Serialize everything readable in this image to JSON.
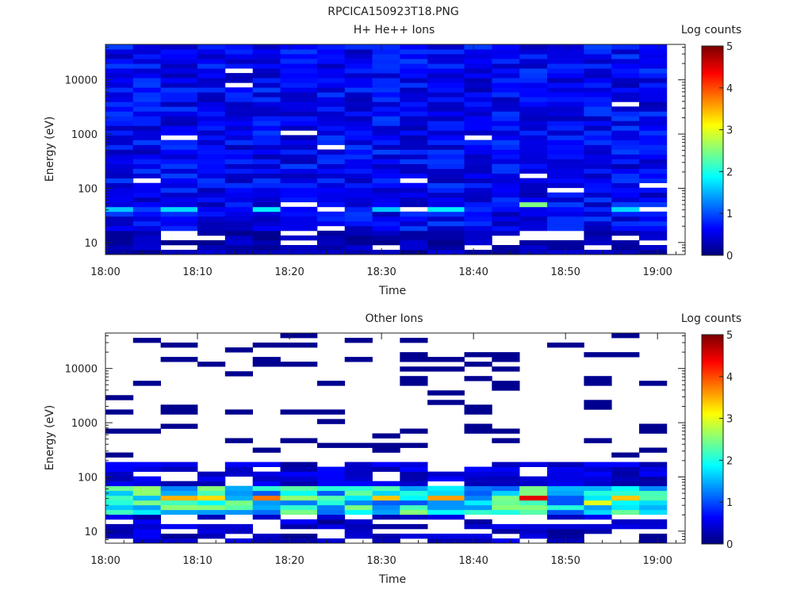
{
  "figure_title": "RPCICA150923T18.PNG",
  "chart_data": [
    {
      "type": "heatmap",
      "title": "H+ He++ Ions",
      "xlabel": "Time",
      "ylabel": "Energy (eV)",
      "x_ticks": [
        "18:00",
        "18:10",
        "18:20",
        "18:30",
        "18:40",
        "18:50",
        "19:00"
      ],
      "x_range": [
        "18:00",
        "19:03"
      ],
      "y_scale": "log",
      "y_ticks": [
        10,
        100,
        1000,
        10000
      ],
      "y_range": [
        6,
        45000
      ],
      "colorbar": {
        "label": "Log counts",
        "range": [
          0,
          5
        ],
        "ticks": [
          0,
          1,
          2,
          3,
          4,
          5
        ],
        "colormap": "jet"
      },
      "time_bins": [
        "18:00",
        "18:03",
        "18:06",
        "18:10",
        "18:13",
        "18:16",
        "18:19",
        "18:23",
        "18:26",
        "18:29",
        "18:32",
        "18:35",
        "18:39",
        "18:42",
        "18:45",
        "18:48",
        "18:52",
        "18:55",
        "18:58"
      ],
      "notable_cells": [
        {
          "time": "18:00",
          "energy_eV": 40,
          "log_counts": 1.6
        },
        {
          "time": "18:06",
          "energy_eV": 38,
          "log_counts": 1.7
        },
        {
          "time": "18:16",
          "energy_eV": 45,
          "log_counts": 1.8
        },
        {
          "time": "18:29",
          "energy_eV": 40,
          "log_counts": 1.6
        },
        {
          "time": "18:35",
          "energy_eV": 45,
          "log_counts": 1.8
        },
        {
          "time": "18:45",
          "energy_eV": 55,
          "log_counts": 2.5
        },
        {
          "time": "18:55",
          "energy_eV": 45,
          "log_counts": 1.7
        }
      ],
      "background_level": "log counts mostly 0.2 - 1.0 across all energies"
    },
    {
      "type": "heatmap",
      "title": "Other Ions",
      "xlabel": "Time",
      "ylabel": "Energy (eV)",
      "x_ticks": [
        "18:00",
        "18:10",
        "18:20",
        "18:30",
        "18:40",
        "18:50",
        "19:00"
      ],
      "x_range": [
        "18:00",
        "19:03"
      ],
      "y_scale": "log",
      "y_ticks": [
        10,
        100,
        1000,
        10000
      ],
      "y_range": [
        6,
        45000
      ],
      "colorbar": {
        "label": "Log counts",
        "range": [
          0,
          5
        ],
        "ticks": [
          0,
          1,
          2,
          3,
          4,
          5
        ],
        "colormap": "jet"
      },
      "time_bins": [
        "18:00",
        "18:03",
        "18:06",
        "18:10",
        "18:13",
        "18:16",
        "18:19",
        "18:23",
        "18:26",
        "18:29",
        "18:32",
        "18:35",
        "18:39",
        "18:42",
        "18:45",
        "18:48",
        "18:52",
        "18:55",
        "18:58"
      ],
      "peak_band_eV": [
        25,
        55
      ],
      "notable_cells": [
        {
          "time": "18:06",
          "energy_eV": 38,
          "log_counts": 3.5
        },
        {
          "time": "18:10",
          "energy_eV": 38,
          "log_counts": 3.3
        },
        {
          "time": "18:16",
          "energy_eV": 45,
          "log_counts": 3.8
        },
        {
          "time": "18:29",
          "energy_eV": 38,
          "log_counts": 3.4
        },
        {
          "time": "18:35",
          "energy_eV": 38,
          "log_counts": 3.6
        },
        {
          "time": "18:45",
          "energy_eV": 45,
          "log_counts": 4.5
        },
        {
          "time": "18:52",
          "energy_eV": 35,
          "log_counts": 3.0
        },
        {
          "time": "18:55",
          "energy_eV": 40,
          "log_counts": 3.4
        }
      ],
      "sparse_high_energy": "isolated low-count (about 0.1) lines above 200 eV"
    }
  ]
}
